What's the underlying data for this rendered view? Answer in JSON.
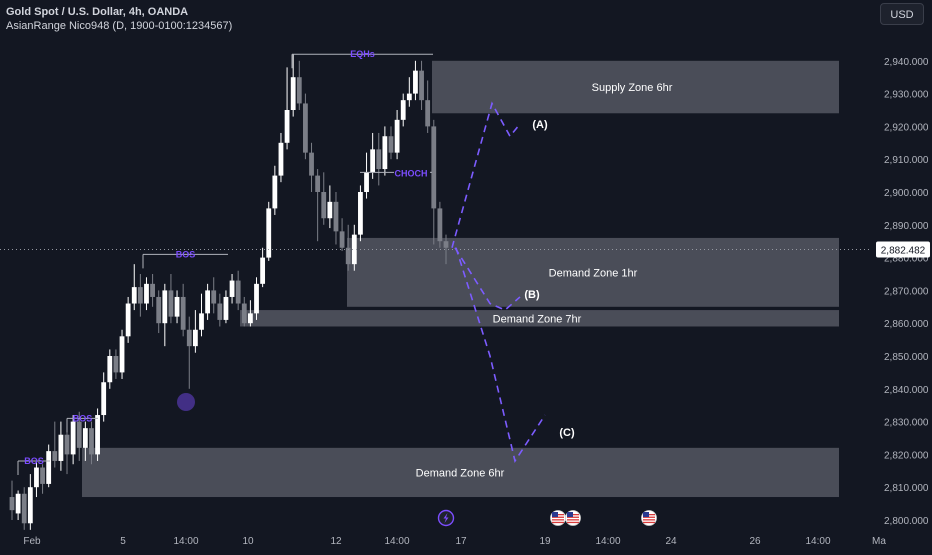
{
  "header": {
    "symbol_line": "Gold Spot / U.S. Dollar, 4h, OANDA",
    "indicator_line": "AsianRange Nico948 (D, 1900-0100:1234567)",
    "currency_button": "USD"
  },
  "price_tag": "2,882.482",
  "colors": {
    "background": "#131722",
    "candle_body": "#ffffff",
    "candle_bear": "#7b7e87",
    "zone_fill": "#5d606b",
    "annotation": "#7c4dff",
    "path": "#7c5cff"
  },
  "event_icons": [
    "lightning-icon",
    "us-flag-icon",
    "us-flag-icon",
    "us-flag-icon"
  ],
  "chart_data": {
    "type": "candlestick",
    "y_axis": {
      "range": [
        2797,
        2950
      ],
      "ticks": [
        2800,
        2810,
        2820,
        2830,
        2840,
        2850,
        2860,
        2870,
        2880,
        2890,
        2900,
        2910,
        2920,
        2930,
        2940
      ],
      "tick_labels": [
        "2,800.000",
        "2,810.000",
        "2,820.000",
        "2,830.000",
        "2,840.000",
        "2,850.000",
        "2,860.000",
        "2,870.000",
        "2,880.000",
        "2,890.000",
        "2,900.000",
        "2,910.000",
        "2,920.000",
        "2,930.000",
        "2,940.000"
      ]
    },
    "x_axis": {
      "tick_labels": [
        "Feb",
        "5",
        "14:00",
        "10",
        "12",
        "14:00",
        "17",
        "19",
        "14:00",
        "24",
        "26",
        "14:00",
        "Ma"
      ]
    },
    "current_price": 2882.482,
    "candles": [
      [
        2807,
        2803,
        2812,
        2800
      ],
      [
        2802,
        2808,
        2809,
        2800
      ],
      [
        2808,
        2799,
        2810,
        2797
      ],
      [
        2799,
        2810,
        2814,
        2797
      ],
      [
        2810,
        2816,
        2818,
        2807
      ],
      [
        2816,
        2811,
        2817,
        2808
      ],
      [
        2811,
        2821,
        2823,
        2810
      ],
      [
        2821,
        2818,
        2830,
        2816
      ],
      [
        2818,
        2826,
        2830,
        2815
      ],
      [
        2826,
        2820,
        2828,
        2814
      ],
      [
        2820,
        2830,
        2832,
        2817
      ],
      [
        2830,
        2822,
        2833,
        2818
      ],
      [
        2822,
        2828,
        2830,
        2818
      ],
      [
        2828,
        2820,
        2830,
        2817
      ],
      [
        2820,
        2832,
        2834,
        2818
      ],
      [
        2832,
        2842,
        2845,
        2830
      ],
      [
        2842,
        2850,
        2852,
        2840
      ],
      [
        2850,
        2845,
        2852,
        2843
      ],
      [
        2845,
        2856,
        2858,
        2843
      ],
      [
        2856,
        2866,
        2868,
        2854
      ],
      [
        2866,
        2871,
        2878,
        2864
      ],
      [
        2871,
        2866,
        2875,
        2862
      ],
      [
        2866,
        2872,
        2874,
        2864
      ],
      [
        2872,
        2868,
        2875,
        2865
      ],
      [
        2868,
        2860,
        2870,
        2857
      ],
      [
        2860,
        2870,
        2872,
        2853
      ],
      [
        2870,
        2862,
        2875,
        2860
      ],
      [
        2862,
        2868,
        2870,
        2860
      ],
      [
        2868,
        2858,
        2872,
        2856
      ],
      [
        2858,
        2853,
        2862,
        2840
      ],
      [
        2853,
        2858,
        2864,
        2851
      ],
      [
        2858,
        2863,
        2869,
        2856
      ],
      [
        2863,
        2870,
        2872,
        2861
      ],
      [
        2870,
        2866,
        2874,
        2863
      ],
      [
        2866,
        2861,
        2869,
        2859
      ],
      [
        2861,
        2868,
        2870,
        2860
      ],
      [
        2868,
        2873,
        2875,
        2866
      ],
      [
        2873,
        2866,
        2876,
        2864
      ],
      [
        2866,
        2860,
        2868,
        2859
      ],
      [
        2860,
        2863,
        2867,
        2859
      ],
      [
        2863,
        2872,
        2874,
        2861
      ],
      [
        2872,
        2880,
        2883,
        2871
      ],
      [
        2880,
        2895,
        2897,
        2879
      ],
      [
        2895,
        2905,
        2908,
        2893
      ],
      [
        2905,
        2915,
        2918,
        2903
      ],
      [
        2915,
        2925,
        2938,
        2913
      ],
      [
        2925,
        2935,
        2942,
        2923
      ],
      [
        2935,
        2927,
        2940,
        2925
      ],
      [
        2927,
        2912,
        2930,
        2910
      ],
      [
        2912,
        2905,
        2915,
        2900
      ],
      [
        2905,
        2900,
        2907,
        2885
      ],
      [
        2900,
        2892,
        2906,
        2890
      ],
      [
        2892,
        2897,
        2902,
        2889
      ],
      [
        2897,
        2888,
        2900,
        2884
      ],
      [
        2888,
        2883,
        2892,
        2882
      ],
      [
        2883,
        2878,
        2890,
        2876
      ],
      [
        2878,
        2887,
        2890,
        2876
      ],
      [
        2887,
        2900,
        2902,
        2885
      ],
      [
        2900,
        2906,
        2912,
        2898
      ],
      [
        2906,
        2913,
        2918,
        2904
      ],
      [
        2913,
        2907,
        2918,
        2902
      ],
      [
        2907,
        2917,
        2920,
        2905
      ],
      [
        2917,
        2912,
        2920,
        2910
      ],
      [
        2912,
        2922,
        2925,
        2910
      ],
      [
        2922,
        2928,
        2930,
        2920
      ],
      [
        2928,
        2930,
        2935,
        2926
      ],
      [
        2930,
        2937,
        2940,
        2928
      ],
      [
        2937,
        2928,
        2940,
        2925
      ],
      [
        2928,
        2920,
        2934,
        2918
      ],
      [
        2920,
        2895,
        2922,
        2884
      ],
      [
        2895,
        2885,
        2897,
        2883
      ],
      [
        2885,
        2883,
        2887,
        2878
      ]
    ],
    "zones": [
      {
        "label": "Supply Zone 6hr",
        "low": 2924,
        "high": 2940
      },
      {
        "label": "Demand Zone 1hr",
        "low": 2865,
        "high": 2886
      },
      {
        "label": "Demand Zone 7hr",
        "low": 2859,
        "high": 2864
      },
      {
        "label": "Demand Zone 6hr",
        "low": 2807,
        "high": 2822
      }
    ],
    "annotations": [
      {
        "label": "BOS",
        "price": 2818
      },
      {
        "label": "BOS",
        "price": 2831
      },
      {
        "label": "BOS",
        "price": 2881
      },
      {
        "label": "EQHs",
        "price": 2942
      },
      {
        "label": "CHOCH",
        "price": 2906
      }
    ],
    "scenarios": [
      {
        "label": "(A)",
        "path": [
          2883,
          2927,
          2917,
          2920
        ]
      },
      {
        "label": "(B)",
        "path": [
          2883,
          2866,
          2864,
          2868
        ]
      },
      {
        "label": "(C)",
        "path": [
          2883,
          2850,
          2818,
          2832
        ]
      }
    ]
  }
}
